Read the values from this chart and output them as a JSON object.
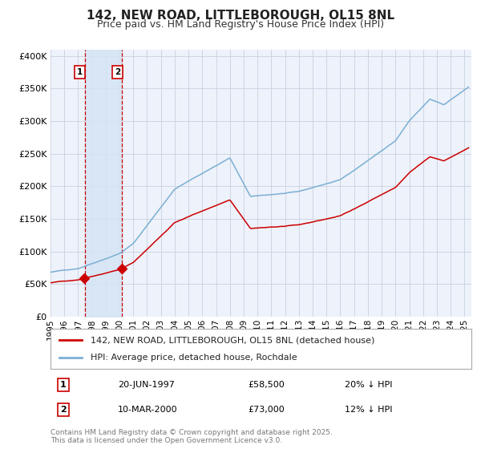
{
  "title": "142, NEW ROAD, LITTLEBOROUGH, OL15 8NL",
  "subtitle": "Price paid vs. HM Land Registry's House Price Index (HPI)",
  "legend_line1": "142, NEW ROAD, LITTLEBOROUGH, OL15 8NL (detached house)",
  "legend_line2": "HPI: Average price, detached house, Rochdale",
  "footer": "Contains HM Land Registry data © Crown copyright and database right 2025.\nThis data is licensed under the Open Government Licence v3.0.",
  "sale1_date": "20-JUN-1997",
  "sale1_price": "£58,500",
  "sale1_hpi": "20% ↓ HPI",
  "sale2_date": "10-MAR-2000",
  "sale2_price": "£73,000",
  "sale2_hpi": "12% ↓ HPI",
  "sale1_year": 1997.47,
  "sale2_year": 2000.19,
  "background_color": "#ffffff",
  "plot_bg_color": "#eef2fa",
  "grid_color": "#c8d0e0",
  "red_color": "#cc0000",
  "blue_color": "#7aafd4",
  "shade_color": "#d6e4f5",
  "vline_color": "#cc0000",
  "marker_color": "#cc0000",
  "title_fontsize": 11,
  "subtitle_fontsize": 9,
  "tick_fontsize": 7.5,
  "ytick_fontsize": 8
}
